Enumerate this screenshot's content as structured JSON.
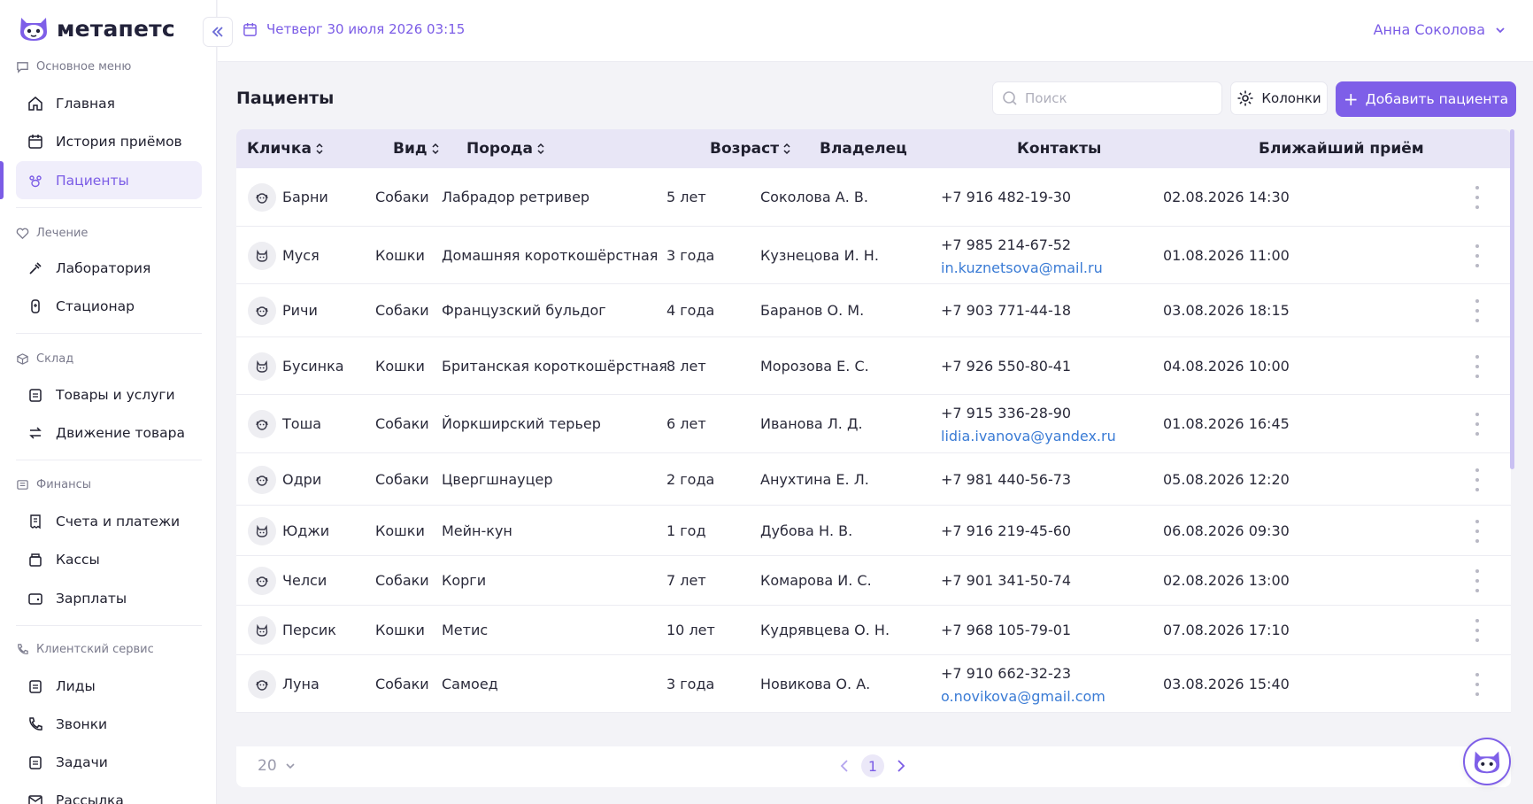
{
  "app": {
    "logo_text": "метапетс"
  },
  "topbar": {
    "date": "Четверг 30 июля 2026 03:15",
    "user_name": "Анна Соколова"
  },
  "sidebar": {
    "sections": [
      {
        "title": "Основное меню",
        "items": [
          "Главная",
          "История приёмов",
          "Пациенты"
        ]
      },
      {
        "title": "Лечение",
        "items": [
          "Лаборатория",
          "Стационар"
        ]
      },
      {
        "title": "Склад",
        "items": [
          "Товары и услуги",
          "Движение товара"
        ]
      },
      {
        "title": "Финансы",
        "items": [
          "Счета и платежи",
          "Кассы",
          "Зарплаты"
        ]
      },
      {
        "title": "Клиентский сервис",
        "items": [
          "Лиды",
          "Звонки",
          "Задачи",
          "Рассылка"
        ]
      }
    ],
    "active_item": "Пациенты"
  },
  "main": {
    "title": "Пациенты",
    "search_placeholder": "Поиск",
    "columns_label": "Колонки",
    "add_label": "Добавить пациента"
  },
  "table": {
    "headers": [
      "Кличка",
      "Вид",
      "Порода",
      "Возраст",
      "Владелец",
      "Контакты",
      "Ближайший приём"
    ],
    "rows": [
      {
        "name": "Барни",
        "species": "Собаки",
        "breed": "Лабрадор ретривер",
        "age": "5 лет",
        "owner": "Соколова А. В.",
        "phone": "+7 916 482-19-30",
        "email": "",
        "next": "02.08.2026 14:30"
      },
      {
        "name": "Муся",
        "species": "Кошки",
        "breed": "Домашняя короткошёрстная",
        "age": "3 года",
        "owner": "Кузнецова И. Н.",
        "phone": "+7 985 214-67-52",
        "email": "in.kuznetsova@mail.ru",
        "next": "01.08.2026 11:00"
      },
      {
        "name": "Ричи",
        "species": "Собаки",
        "breed": "Французский бульдог",
        "age": "4 года",
        "owner": "Баранов О. М.",
        "phone": "+7 903 771-44-18",
        "email": "",
        "next": "03.08.2026 18:15"
      },
      {
        "name": "Бусинка",
        "species": "Кошки",
        "breed": "Британская короткошёрстная",
        "age": "8 лет",
        "owner": "Морозова Е. С.",
        "phone": "+7 926 550-80-41",
        "email": "",
        "next": "04.08.2026 10:00"
      },
      {
        "name": "Тоша",
        "species": "Собаки",
        "breed": "Йоркширский терьер",
        "age": "6 лет",
        "owner": "Иванова Л. Д.",
        "phone": "+7 915 336-28-90",
        "email": "lidia.ivanova@yandex.ru",
        "next": "01.08.2026 16:45"
      },
      {
        "name": "Одри",
        "species": "Собаки",
        "breed": "Цвергшнауцер",
        "age": "2 года",
        "owner": "Анухтина Е. Л.",
        "phone": "+7 981 440-56-73",
        "email": "",
        "next": "05.08.2026 12:20"
      },
      {
        "name": "Юджи",
        "species": "Кошки",
        "breed": "Мейн-кун",
        "age": "1 год",
        "owner": "Дубова Н. В.",
        "phone": "+7 916 219-45-60",
        "email": "",
        "next": "06.08.2026 09:30"
      },
      {
        "name": "Челси",
        "species": "Собаки",
        "breed": "Корги",
        "age": "7 лет",
        "owner": "Комарова И. С.",
        "phone": "+7 901 341-50-74",
        "email": "",
        "next": "02.08.2026 13:00"
      },
      {
        "name": "Персик",
        "species": "Кошки",
        "breed": "Метис",
        "age": "10 лет",
        "owner": "Кудрявцева О. Н.",
        "phone": "+7 968 105-79-01",
        "email": "",
        "next": "07.08.2026 17:10"
      },
      {
        "name": "Луна",
        "species": "Собаки",
        "breed": "Самоед",
        "age": "3 года",
        "owner": "Новикова О. А.",
        "phone": "+7 910 662-32-23",
        "email": "o.novikova@gmail.com",
        "next": "03.08.2026 15:40"
      }
    ]
  },
  "footer": {
    "page_size": "20",
    "current_page": "1"
  },
  "colors": {
    "accent": "#7e5fe8",
    "header_bg": "#e8e6f6",
    "link": "#3a7bd5"
  }
}
